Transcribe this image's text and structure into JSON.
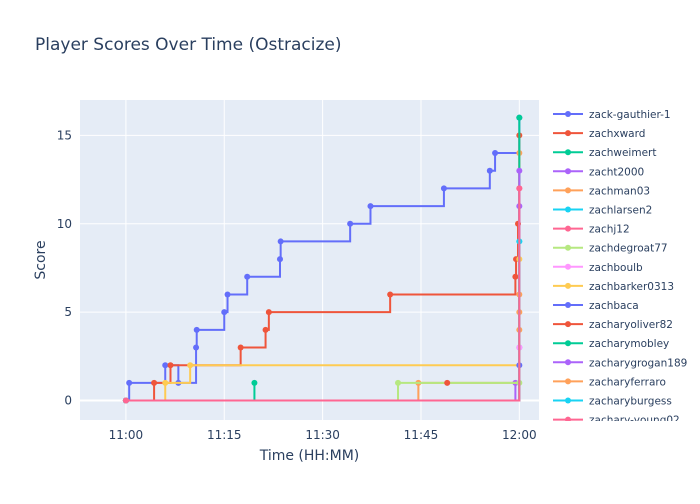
{
  "chart_data": {
    "type": "line",
    "title": "Player Scores Over Time (Ostracize)",
    "xlabel": "Time (HH:MM)",
    "ylabel": "Score",
    "x_range_minutes": [
      -7,
      63
    ],
    "y_range": [
      -1.1,
      17
    ],
    "x_ticks": [
      {
        "value": 0,
        "label": "11:00"
      },
      {
        "value": 15,
        "label": "11:15"
      },
      {
        "value": 30,
        "label": "11:30"
      },
      {
        "value": 45,
        "label": "11:45"
      },
      {
        "value": 60,
        "label": "12:00"
      }
    ],
    "y_ticks": [
      0,
      5,
      10,
      15
    ],
    "line_shape": "step",
    "grid": true,
    "legend_position": "right",
    "series": [
      {
        "name": "zack-gauthier-1",
        "color": "#636efa",
        "points": [
          [
            0,
            0
          ],
          [
            0.5,
            1
          ],
          [
            6,
            2
          ],
          [
            8,
            1
          ],
          [
            10.7,
            3
          ],
          [
            10.8,
            4
          ],
          [
            15,
            5
          ],
          [
            15.5,
            6
          ],
          [
            18.5,
            7
          ],
          [
            23.5,
            8
          ],
          [
            23.6,
            9
          ],
          [
            34.2,
            10
          ],
          [
            37.3,
            11
          ],
          [
            48.5,
            12
          ],
          [
            55.5,
            13
          ],
          [
            56.3,
            14
          ],
          [
            60,
            16
          ]
        ]
      },
      {
        "name": "zachxward",
        "color": "#ef553b",
        "points": [
          [
            0,
            0
          ],
          [
            4.3,
            1
          ],
          [
            6.8,
            2
          ],
          [
            17.5,
            3
          ],
          [
            21.3,
            4
          ],
          [
            21.8,
            5
          ],
          [
            40.3,
            6
          ],
          [
            59.4,
            7
          ],
          [
            59.5,
            8
          ],
          [
            59.8,
            10
          ],
          [
            60,
            15
          ]
        ]
      },
      {
        "name": "zachweimert",
        "color": "#00cc96",
        "points": [
          [
            0,
            0
          ],
          [
            19.6,
            1
          ]
        ]
      },
      {
        "name": "zacht2000",
        "color": "#ab63fa",
        "points": [
          [
            0,
            0
          ],
          [
            59.4,
            1
          ],
          [
            60,
            3
          ],
          [
            60,
            11
          ]
        ]
      },
      {
        "name": "zachman03",
        "color": "#ffa15a",
        "points": [
          [
            0,
            0
          ],
          [
            44.6,
            1
          ],
          [
            60,
            4
          ],
          [
            60,
            5
          ],
          [
            60,
            14
          ]
        ]
      },
      {
        "name": "zachlarsen2",
        "color": "#19d3f3",
        "points": [
          [
            0,
            0
          ],
          [
            60,
            9
          ]
        ]
      },
      {
        "name": "zachj12",
        "color": "#ff6692",
        "points": [
          [
            0,
            0
          ],
          [
            60,
            12
          ]
        ]
      },
      {
        "name": "zachdegroat77",
        "color": "#b6e880",
        "points": [
          [
            0,
            0
          ],
          [
            41.5,
            1
          ],
          [
            60,
            1
          ]
        ]
      },
      {
        "name": "zachboulb",
        "color": "#ff97ff",
        "points": [
          [
            0,
            0
          ],
          [
            60,
            3
          ]
        ]
      },
      {
        "name": "zachbarker0313",
        "color": "#fecb52",
        "points": [
          [
            0,
            0
          ],
          [
            6,
            1
          ],
          [
            9.8,
            2
          ],
          [
            60,
            8
          ]
        ]
      },
      {
        "name": "zachbaca",
        "color": "#636efa",
        "points": [
          [
            0,
            0
          ],
          [
            60,
            2
          ]
        ]
      },
      {
        "name": "zacharyoliver82",
        "color": "#ef553b",
        "points": [
          [
            49,
            1
          ]
        ]
      },
      {
        "name": "zacharymobley",
        "color": "#00cc96",
        "points": [
          [
            0,
            0
          ],
          [
            60,
            16
          ]
        ]
      },
      {
        "name": "zacharygrogan189",
        "color": "#ab63fa",
        "points": [
          [
            0,
            0
          ],
          [
            60,
            13
          ]
        ]
      },
      {
        "name": "zacharyferraro",
        "color": "#ffa15a",
        "points": [
          [
            0,
            0
          ],
          [
            60,
            6
          ]
        ]
      },
      {
        "name": "zacharyburgess",
        "color": "#19d3f3",
        "points": [
          [
            0,
            0
          ],
          [
            60,
            9
          ]
        ]
      },
      {
        "name": "zachary-young02",
        "color": "#ff6692",
        "points": [
          [
            0,
            0
          ],
          [
            60,
            12
          ]
        ]
      }
    ]
  }
}
